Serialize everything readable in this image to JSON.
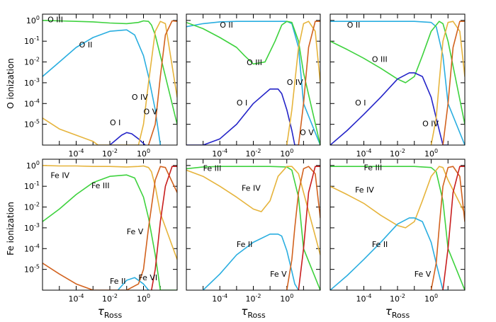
{
  "chart_data": {
    "type": "line",
    "layout": "2x3 panel grid",
    "xscale": "log",
    "yscale": "log",
    "xlim": [
      1e-06,
      100
    ],
    "ylim": [
      1e-06,
      2
    ],
    "x_ticks": [
      {
        "value": 0.0001,
        "base": "10",
        "exp": "-4"
      },
      {
        "value": 0.01,
        "base": "10",
        "exp": "-2"
      },
      {
        "value": 1,
        "base": "10",
        "exp": "0"
      }
    ],
    "y_ticks": [
      {
        "value": 1,
        "base": "10",
        "exp": "0"
      },
      {
        "value": 0.1,
        "base": "10",
        "exp": "-1"
      },
      {
        "value": 0.01,
        "base": "10",
        "exp": "-2"
      },
      {
        "value": 0.001,
        "base": "10",
        "exp": "-3"
      },
      {
        "value": 0.0001,
        "base": "10",
        "exp": "-4"
      },
      {
        "value": 1e-05,
        "base": "10",
        "exp": "-5"
      }
    ],
    "row_ylabels": [
      "O ionization",
      "Fe ionization"
    ],
    "xlabel": {
      "main": "τ",
      "sub": "Ross"
    },
    "colors": {
      "ion1": "#2424c8",
      "ion2": "#2aaee0",
      "ion3": "#3ed23e",
      "ion4": "#e6b43c",
      "ion5": "#d2621e",
      "ion6": "#c81e1e"
    },
    "panels": [
      {
        "row": 0,
        "col": 0,
        "series": [
          {
            "color": "ion3",
            "x": [
              1e-06,
              1e-05,
              0.0001,
              0.001,
              0.01,
              0.1,
              0.5,
              1,
              2,
              3,
              5,
              10,
              100
            ],
            "y": [
              1.0,
              0.95,
              0.9,
              0.85,
              0.75,
              0.7,
              0.8,
              0.95,
              0.9,
              0.6,
              0.2,
              0.02,
              1e-05
            ]
          },
          {
            "color": "ion2",
            "x": [
              1e-06,
              1e-05,
              0.0001,
              0.001,
              0.01,
              0.1,
              0.3,
              1,
              2,
              5,
              10
            ],
            "y": [
              0.002,
              0.01,
              0.05,
              0.15,
              0.3,
              0.35,
              0.2,
              0.02,
              0.002,
              5e-05,
              1e-06
            ]
          },
          {
            "color": "ion1",
            "x": [
              0.01,
              0.05,
              0.1,
              0.2,
              0.5,
              1,
              2
            ],
            "y": [
              1e-06,
              3e-06,
              4e-06,
              3.5e-06,
              2e-06,
              1.2e-06,
              7e-07
            ]
          },
          {
            "color": "ion4",
            "x": [
              1e-06,
              1e-05,
              0.0001,
              0.001,
              0.002,
              0.5,
              1,
              2,
              5,
              10,
              20,
              100
            ],
            "y": [
              2e-05,
              6e-06,
              3e-06,
              1.5e-06,
              1e-06,
              1e-06,
              1e-05,
              0.001,
              0.3,
              0.9,
              0.7,
              0.0002
            ]
          },
          {
            "color": "ion5",
            "x": [
              2,
              5,
              10,
              20,
              50,
              100
            ],
            "y": [
              1e-06,
              1e-05,
              0.002,
              0.2,
              0.95,
              0.9
            ]
          }
        ],
        "labels": [
          {
            "text": "O III",
            "x": 2e-06,
            "y": 0.8
          },
          {
            "text": "O II",
            "x": 0.00015,
            "y": 0.05
          },
          {
            "text": "O IV",
            "x": 0.2,
            "y": 0.00015
          },
          {
            "text": "O V",
            "x": 1,
            "y": 3e-05
          },
          {
            "text": "O I",
            "x": 0.01,
            "y": 9e-06
          }
        ]
      },
      {
        "row": 0,
        "col": 1,
        "series": [
          {
            "color": "ion2",
            "x": [
              1e-06,
              1e-05,
              0.0001,
              0.001,
              0.01,
              0.1,
              1,
              2,
              5,
              10,
              100
            ],
            "y": [
              0.5,
              0.7,
              0.85,
              0.9,
              0.9,
              0.9,
              0.9,
              0.7,
              0.05,
              0.0001,
              1e-06
            ]
          },
          {
            "color": "ion3",
            "x": [
              1e-06,
              1e-05,
              0.0001,
              0.001,
              0.003,
              0.01,
              0.05,
              0.2,
              0.5,
              1,
              2,
              5,
              10,
              100
            ],
            "y": [
              0.8,
              0.4,
              0.15,
              0.05,
              0.02,
              0.008,
              0.01,
              0.1,
              0.6,
              0.9,
              0.8,
              0.1,
              0.003,
              1e-06
            ]
          },
          {
            "color": "ion1",
            "x": [
              1e-06,
              1e-05,
              0.0001,
              0.001,
              0.01,
              0.1,
              0.3,
              0.5,
              1,
              2,
              3,
              5
            ],
            "y": [
              1e-06,
              1e-06,
              2e-06,
              1e-05,
              0.0001,
              0.0005,
              0.0005,
              0.0003,
              5e-05,
              5e-06,
              1e-06,
              1e-06
            ]
          },
          {
            "color": "ion4",
            "x": [
              1,
              2,
              3,
              5,
              10,
              20,
              50,
              100
            ],
            "y": [
              1e-06,
              5e-05,
              0.001,
              0.05,
              0.7,
              0.9,
              0.3,
              0.001
            ]
          },
          {
            "color": "ion5",
            "x": [
              5,
              10,
              20,
              50,
              100
            ],
            "y": [
              1e-06,
              0.0001,
              0.05,
              0.9,
              0.9
            ]
          }
        ],
        "labels": [
          {
            "text": "O II",
            "x": 0.0001,
            "y": 0.45
          },
          {
            "text": "O III",
            "x": 0.004,
            "y": 0.007
          },
          {
            "text": "O IV",
            "x": 1,
            "y": 0.0008
          },
          {
            "text": "O I",
            "x": 0.001,
            "y": 8e-05
          },
          {
            "text": "O V",
            "x": 6,
            "y": 3e-06
          }
        ]
      },
      {
        "row": 0,
        "col": 2,
        "series": [
          {
            "color": "ion2",
            "x": [
              1e-06,
              1e-05,
              0.0001,
              0.001,
              0.01,
              0.1,
              1,
              2,
              5,
              10,
              100
            ],
            "y": [
              0.9,
              0.9,
              0.9,
              0.9,
              0.9,
              0.9,
              0.8,
              0.5,
              0.02,
              0.0001,
              1e-06
            ]
          },
          {
            "color": "ion3",
            "x": [
              1e-06,
              1e-05,
              0.0001,
              0.001,
              0.01,
              0.03,
              0.1,
              0.3,
              1,
              3,
              5,
              10,
              100
            ],
            "y": [
              0.1,
              0.04,
              0.015,
              0.005,
              0.0015,
              0.001,
              0.002,
              0.02,
              0.3,
              0.9,
              0.7,
              0.1,
              1e-05
            ]
          },
          {
            "color": "ion1",
            "x": [
              1e-06,
              1e-05,
              0.0001,
              0.001,
              0.01,
              0.05,
              0.1,
              0.3,
              1,
              2,
              5,
              10
            ],
            "y": [
              1e-06,
              5e-06,
              3e-05,
              0.0002,
              0.0015,
              0.003,
              0.003,
              0.002,
              0.0002,
              2e-05,
              1e-06,
              1e-06
            ]
          },
          {
            "color": "ion4",
            "x": [
              1,
              2,
              3,
              5,
              10,
              20,
              50,
              100
            ],
            "y": [
              1e-06,
              2e-05,
              0.001,
              0.1,
              0.8,
              0.9,
              0.3,
              0.002
            ]
          },
          {
            "color": "ion5",
            "x": [
              5,
              10,
              20,
              50,
              100
            ],
            "y": [
              1e-06,
              0.0001,
              0.05,
              0.9,
              0.9
            ]
          }
        ],
        "labels": [
          {
            "text": "O II",
            "x": 1e-05,
            "y": 0.45
          },
          {
            "text": "O III",
            "x": 0.0003,
            "y": 0.01
          },
          {
            "text": "O I",
            "x": 3e-05,
            "y": 8e-05
          },
          {
            "text": "O IV",
            "x": 0.3,
            "y": 8e-06
          }
        ]
      },
      {
        "row": 1,
        "col": 0,
        "series": [
          {
            "color": "ion4",
            "x": [
              1e-06,
              1e-05,
              0.0001,
              0.001,
              0.01,
              0.1,
              0.5,
              1,
              2,
              3,
              5,
              10,
              100
            ],
            "y": [
              1.0,
              0.95,
              0.95,
              0.9,
              0.9,
              0.85,
              0.9,
              0.95,
              0.8,
              0.5,
              0.1,
              0.005,
              3e-05
            ]
          },
          {
            "color": "ion3",
            "x": [
              1e-06,
              1e-05,
              0.0001,
              0.001,
              0.01,
              0.1,
              0.3,
              1,
              2,
              5,
              10,
              100
            ],
            "y": [
              0.002,
              0.008,
              0.04,
              0.15,
              0.3,
              0.35,
              0.25,
              0.03,
              0.003,
              5e-05,
              1e-06,
              1e-06
            ]
          },
          {
            "color": "ion2",
            "x": [
              0.03,
              0.1,
              0.3,
              1,
              2
            ],
            "y": [
              1e-06,
              3e-06,
              4e-06,
              2e-06,
              1e-06
            ]
          },
          {
            "color": "ion5",
            "x": [
              1e-06,
              1e-05,
              0.0001,
              0.001,
              0.01,
              0.1,
              0.5,
              1,
              2,
              5,
              10,
              20,
              100
            ],
            "y": [
              2e-05,
              6e-06,
              2e-06,
              1e-06,
              1e-06,
              1e-06,
              2e-06,
              1e-05,
              0.001,
              0.2,
              0.9,
              0.8,
              0.05
            ]
          },
          {
            "color": "ion6",
            "x": [
              3,
              5,
              10,
              20,
              50,
              100
            ],
            "y": [
              1e-06,
              1e-05,
              0.002,
              0.1,
              0.9,
              0.9
            ]
          }
        ],
        "labels": [
          {
            "text": "Fe IV",
            "x": 3e-06,
            "y": 0.25
          },
          {
            "text": "Fe III",
            "x": 0.0008,
            "y": 0.08
          },
          {
            "text": "Fe V",
            "x": 0.1,
            "y": 0.0005
          },
          {
            "text": "Fe VI",
            "x": 0.5,
            "y": 3e-06
          },
          {
            "text": "Fe II",
            "x": 0.01,
            "y": 2e-06
          }
        ]
      },
      {
        "row": 1,
        "col": 1,
        "series": [
          {
            "color": "ion3",
            "x": [
              1e-06,
              1e-05,
              0.0001,
              0.001,
              0.01,
              0.1,
              1,
              2,
              5,
              10,
              100
            ],
            "y": [
              0.7,
              0.85,
              0.9,
              0.9,
              0.9,
              0.9,
              0.85,
              0.6,
              0.03,
              0.0001,
              1e-06
            ]
          },
          {
            "color": "ion4",
            "x": [
              1e-06,
              1e-05,
              0.0001,
              0.001,
              0.01,
              0.03,
              0.1,
              0.3,
              1,
              2,
              5,
              10,
              100
            ],
            "y": [
              0.6,
              0.3,
              0.1,
              0.03,
              0.008,
              0.006,
              0.02,
              0.3,
              0.9,
              0.9,
              0.4,
              0.05,
              5e-05
            ]
          },
          {
            "color": "ion2",
            "x": [
              1e-05,
              0.0001,
              0.001,
              0.01,
              0.1,
              0.3,
              0.5,
              1,
              2,
              3,
              5
            ],
            "y": [
              1e-06,
              6e-06,
              5e-05,
              0.0002,
              0.0005,
              0.0005,
              0.0004,
              8e-05,
              8e-06,
              2e-06,
              1e-06
            ]
          },
          {
            "color": "ion5",
            "x": [
              1,
              2,
              3,
              5,
              10,
              20,
              50,
              100
            ],
            "y": [
              1e-06,
              3e-05,
              0.001,
              0.05,
              0.7,
              0.9,
              0.4,
              0.003
            ]
          },
          {
            "color": "ion6",
            "x": [
              5,
              10,
              20,
              50,
              100
            ],
            "y": [
              1e-06,
              0.0001,
              0.05,
              0.9,
              0.9
            ]
          }
        ],
        "labels": [
          {
            "text": "Fe III",
            "x": 1e-05,
            "y": 0.55
          },
          {
            "text": "Fe IV",
            "x": 0.002,
            "y": 0.06
          },
          {
            "text": "Fe II",
            "x": 0.001,
            "y": 0.00012
          },
          {
            "text": "Fe V",
            "x": 0.1,
            "y": 4.5e-06
          }
        ]
      },
      {
        "row": 1,
        "col": 2,
        "series": [
          {
            "color": "ion3",
            "x": [
              1e-06,
              1e-05,
              0.0001,
              0.001,
              0.01,
              0.1,
              1,
              2,
              5,
              10,
              100
            ],
            "y": [
              0.9,
              0.9,
              0.9,
              0.9,
              0.9,
              0.9,
              0.8,
              0.5,
              0.02,
              0.0001,
              1e-06
            ]
          },
          {
            "color": "ion4",
            "x": [
              1e-06,
              1e-05,
              0.0001,
              0.001,
              0.01,
              0.03,
              0.1,
              0.3,
              1,
              3,
              5,
              10,
              100
            ],
            "y": [
              0.1,
              0.04,
              0.015,
              0.004,
              0.0013,
              0.001,
              0.002,
              0.02,
              0.3,
              0.9,
              0.8,
              0.2,
              0.005
            ]
          },
          {
            "color": "ion2",
            "x": [
              1e-06,
              1e-05,
              0.0001,
              0.001,
              0.01,
              0.05,
              0.1,
              0.3,
              1,
              2,
              5,
              10
            ],
            "y": [
              1e-06,
              5e-06,
              3e-05,
              0.0002,
              0.0015,
              0.003,
              0.003,
              0.002,
              0.0002,
              2e-05,
              1e-06,
              1e-06
            ]
          },
          {
            "color": "ion5",
            "x": [
              1,
              2,
              3,
              5,
              10,
              20,
              50,
              100
            ],
            "y": [
              1e-06,
              2e-05,
              0.001,
              0.1,
              0.8,
              0.9,
              0.3,
              0.002
            ]
          },
          {
            "color": "ion6",
            "x": [
              5,
              10,
              20,
              50,
              100
            ],
            "y": [
              1e-06,
              0.0001,
              0.05,
              0.9,
              0.9
            ]
          }
        ],
        "labels": [
          {
            "text": "Fe III",
            "x": 0.0001,
            "y": 0.6
          },
          {
            "text": "Fe IV",
            "x": 3e-05,
            "y": 0.05
          },
          {
            "text": "Fe II",
            "x": 0.0003,
            "y": 0.00012
          },
          {
            "text": "Fe V",
            "x": 0.1,
            "y": 4.5e-06
          }
        ]
      }
    ]
  }
}
